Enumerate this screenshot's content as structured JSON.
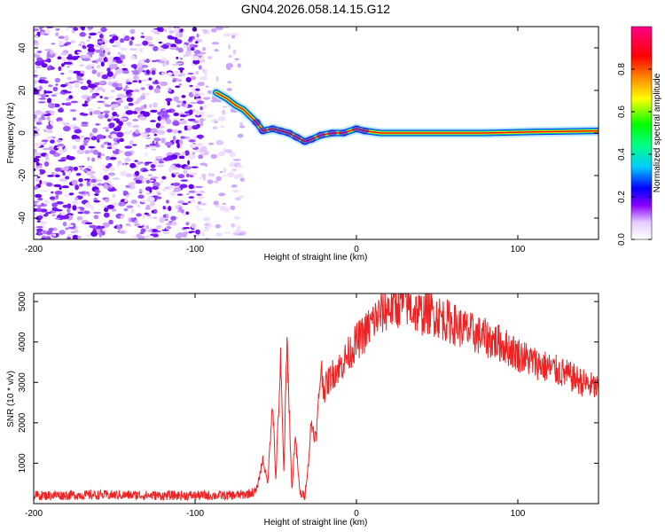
{
  "title": "GN04.2026.058.14.15.G12",
  "chart_data": [
    {
      "type": "heatmap",
      "name": "spectrogram",
      "xlabel": "Height of straight line (km)",
      "ylabel": "Frequency (Hz)",
      "xlim": [
        -200,
        150
      ],
      "ylim": [
        -50,
        50
      ],
      "xticks": [
        -200,
        -100,
        0,
        100
      ],
      "yticks": [
        -40,
        -20,
        0,
        20,
        40
      ],
      "noise_region_x": [
        -200,
        -70
      ],
      "signal_ridge": [
        {
          "x": -87,
          "y": 19
        },
        {
          "x": -80,
          "y": 16
        },
        {
          "x": -75,
          "y": 13
        },
        {
          "x": -70,
          "y": 11
        },
        {
          "x": -62,
          "y": 5
        },
        {
          "x": -58,
          "y": 1
        },
        {
          "x": -52,
          "y": 2
        },
        {
          "x": -47,
          "y": 1
        },
        {
          "x": -42,
          "y": 0
        },
        {
          "x": -37,
          "y": -2
        },
        {
          "x": -32,
          "y": -4
        },
        {
          "x": -28,
          "y": -3
        },
        {
          "x": -22,
          "y": -1
        },
        {
          "x": -15,
          "y": 0
        },
        {
          "x": -8,
          "y": 0
        },
        {
          "x": 0,
          "y": 2
        },
        {
          "x": 5,
          "y": 1
        },
        {
          "x": 15,
          "y": 0
        },
        {
          "x": 40,
          "y": 0
        },
        {
          "x": 80,
          "y": 0
        },
        {
          "x": 110,
          "y": 0.5
        },
        {
          "x": 150,
          "y": 1
        }
      ],
      "colorbar": {
        "label": "Normalized spectral amplitude",
        "ticks": [
          0.0,
          0.2,
          0.4,
          0.6,
          0.8
        ],
        "range": [
          0,
          1
        ],
        "colors": [
          "#ffffff",
          "#8800ff",
          "#0000ff",
          "#00ffff",
          "#00ff00",
          "#ffff00",
          "#ff8800",
          "#ff0000",
          "#ff00aa"
        ]
      }
    },
    {
      "type": "line",
      "name": "snr",
      "xlabel": "Height of straight line (km)",
      "ylabel": "SNR (10 * v/v)",
      "xlim": [
        -200,
        150
      ],
      "ylim": [
        0,
        5200
      ],
      "xticks": [
        -200,
        -100,
        0,
        100
      ],
      "yticks": [
        1000,
        2000,
        3000,
        4000,
        5000
      ],
      "color": "#ee2222",
      "x": [
        -200,
        -180,
        -160,
        -140,
        -120,
        -100,
        -80,
        -70,
        -62,
        -58,
        -55,
        -52,
        -50,
        -47,
        -45,
        -43,
        -40,
        -38,
        -35,
        -32,
        -30,
        -28,
        -25,
        -22,
        -20,
        -18,
        -15,
        -10,
        -5,
        0,
        5,
        10,
        15,
        20,
        25,
        30,
        35,
        40,
        45,
        50,
        60,
        70,
        80,
        90,
        100,
        110,
        120,
        130,
        140,
        150
      ],
      "y": [
        200,
        210,
        215,
        210,
        200,
        200,
        200,
        220,
        300,
        1100,
        500,
        2600,
        600,
        3500,
        800,
        4000,
        300,
        1700,
        250,
        200,
        900,
        2000,
        1600,
        3400,
        2800,
        3000,
        3200,
        3400,
        3700,
        4000,
        4200,
        4500,
        4700,
        4850,
        4900,
        5000,
        4800,
        4700,
        4750,
        4650,
        4450,
        4250,
        4100,
        3950,
        3700,
        3500,
        3350,
        3200,
        3000,
        2850
      ]
    }
  ]
}
